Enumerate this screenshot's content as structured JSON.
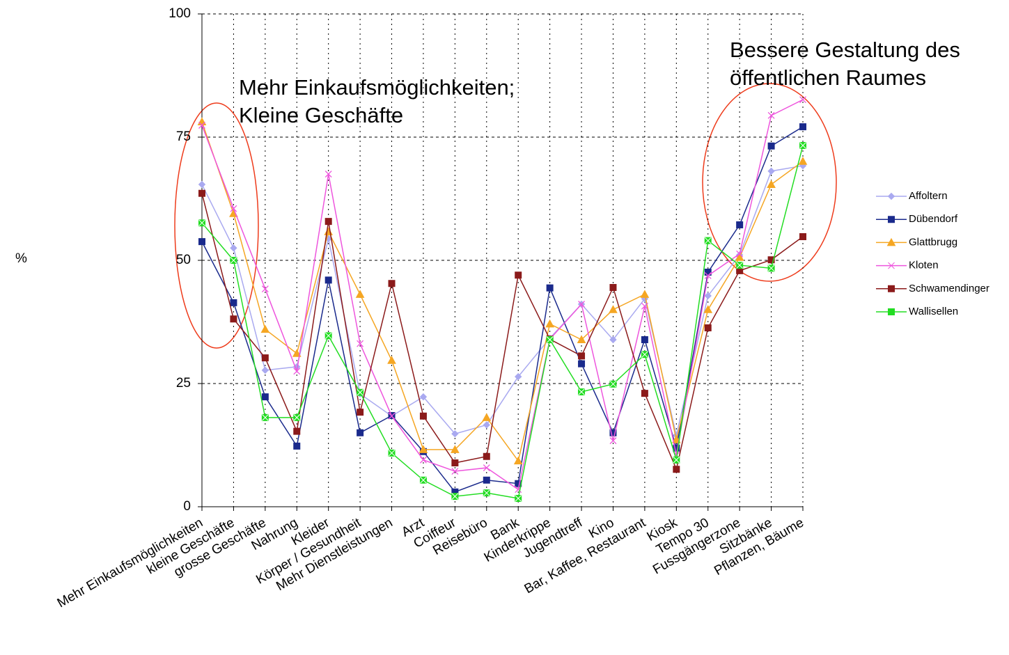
{
  "chart_data": {
    "type": "line",
    "y_label": "%",
    "categories": [
      "Mehr Einkaufsmöglichkeiten",
      "kleine Geschäfte",
      "grosse Geschäfte",
      "Nahrung",
      "Kleider",
      "Körper / Gesundheit",
      "Mehr Dienstleistungen",
      "Arzt",
      "Coiffeur",
      "Reisebüro",
      "Bank",
      "Kinderkrippe",
      "Jugendtreff",
      "Kino",
      "Bar, Kaffee, Restaurant",
      "Kiosk",
      "Tempo 30",
      "Fussgängerzone",
      "Sitzbänke",
      "Pflanzen, Bäume"
    ],
    "series": [
      {
        "name": "Affoltern",
        "color": "#a9a9f0",
        "marker": "diamond",
        "values": [
          65.4,
          52.5,
          27.7,
          28.4,
          54.4,
          22.9,
          18.4,
          22.3,
          14.8,
          16.6,
          26.4,
          34.2,
          41.1,
          33.9,
          42.2,
          14.5,
          42.8,
          51.1,
          68.1,
          69.2
        ]
      },
      {
        "name": "Dübendorf",
        "color": "#1a2a8c",
        "marker": "square",
        "values": [
          53.8,
          41.4,
          22.3,
          12.3,
          46.0,
          15.0,
          18.5,
          11.2,
          3.0,
          5.4,
          4.7,
          44.4,
          29.0,
          15.0,
          33.9,
          11.9,
          47.6,
          57.2,
          73.2,
          77.1
        ]
      },
      {
        "name": "Glattbrugg",
        "color": "#f5a623",
        "marker": "triangle",
        "values": [
          78.1,
          59.5,
          36.0,
          31.1,
          55.8,
          43.1,
          29.7,
          11.6,
          11.6,
          18.1,
          9.3,
          37.1,
          33.9,
          40.0,
          43.1,
          13.6,
          40.0,
          50.6,
          65.4,
          70.1
        ]
      },
      {
        "name": "Kloten",
        "color": "#ee55dd",
        "marker": "x",
        "values": [
          77.4,
          60.5,
          44.2,
          27.5,
          67.5,
          33.1,
          18.4,
          9.5,
          7.2,
          7.9,
          3.5,
          34.0,
          41.1,
          13.4,
          40.7,
          10.5,
          46.9,
          51.3,
          79.4,
          82.6
        ]
      },
      {
        "name": "Schwamendinger",
        "color": "#8b1a1a",
        "marker": "square",
        "values": [
          63.6,
          38.1,
          30.2,
          15.3,
          57.9,
          19.2,
          45.3,
          18.4,
          8.9,
          10.2,
          47.0,
          34.0,
          30.6,
          44.5,
          23.0,
          7.6,
          36.3,
          47.9,
          50.1,
          54.8
        ]
      },
      {
        "name": "Wallisellen",
        "color": "#22dd22",
        "marker": "star",
        "values": [
          57.6,
          50.0,
          18.1,
          18.1,
          34.7,
          23.2,
          10.9,
          5.4,
          2.1,
          2.8,
          1.7,
          33.9,
          23.3,
          24.9,
          30.9,
          9.5,
          54.0,
          49.0,
          48.4,
          73.3
        ]
      }
    ],
    "ylim": [
      0,
      100
    ],
    "yticks": [
      0,
      25,
      50,
      75,
      100
    ],
    "grid": true,
    "legend": "right",
    "annotations": [
      {
        "lines": [
          "Mehr Einkaufsmöglichkeiten;",
          "Kleine Geschäfte"
        ],
        "color": "#ee3b1b"
      },
      {
        "lines": [
          "Bessere Gestaltung des",
          "öffentlichen Raumes"
        ],
        "color": "#ee3b1b"
      }
    ]
  }
}
